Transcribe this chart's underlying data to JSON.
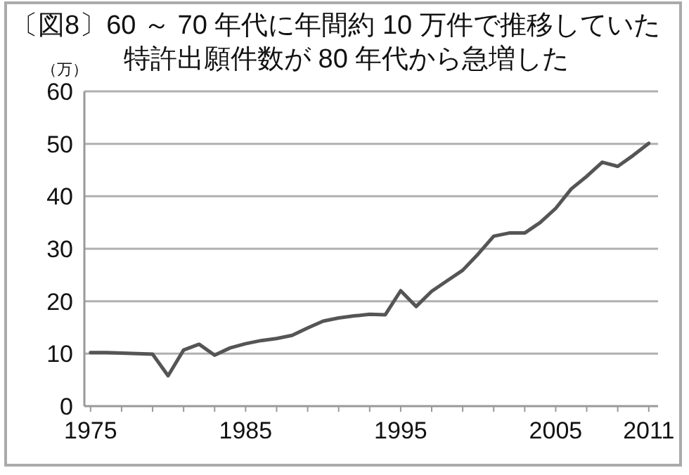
{
  "chart_data": {
    "type": "line",
    "title": "〔図8〕60 ～ 70 年代に年間約 10 万件で推移していた特許出願件数が 80 年代から急増した",
    "ylabel": "（万）",
    "x": [
      1975,
      1976,
      1977,
      1978,
      1979,
      1980,
      1981,
      1982,
      1983,
      1984,
      1985,
      1986,
      1987,
      1988,
      1989,
      1990,
      1991,
      1992,
      1993,
      1994,
      1995,
      1996,
      1997,
      1998,
      1999,
      2000,
      2001,
      2002,
      2003,
      2004,
      2005,
      2006,
      2007,
      2008,
      2009,
      2010,
      2011
    ],
    "series": [
      {
        "color": "#555555",
        "values": [
          10.2,
          10.2,
          10.1,
          10.0,
          9.9,
          5.8,
          10.7,
          11.8,
          9.7,
          11.1,
          11.9,
          12.5,
          12.9,
          13.5,
          14.9,
          16.2,
          16.8,
          17.2,
          17.5,
          17.4,
          22.0,
          19.0,
          21.9,
          23.9,
          25.9,
          29.0,
          32.4,
          33.0,
          33.0,
          35.0,
          37.7,
          41.4,
          43.8,
          46.5,
          45.7,
          47.8,
          50.1
        ]
      }
    ],
    "xlim": [
      1974.6,
      2011.6
    ],
    "ylim": [
      0,
      60
    ],
    "xticks": [
      1975,
      {
        "value": 1977,
        "label": null
      },
      {
        "value": 1979,
        "label": null
      },
      {
        "value": 1981,
        "label": null
      },
      {
        "value": 1983,
        "label": null
      },
      1985,
      {
        "value": 1987,
        "label": null
      },
      {
        "value": 1989,
        "label": null
      },
      {
        "value": 1991,
        "label": null
      },
      {
        "value": 1993,
        "label": null
      },
      1995,
      {
        "value": 1997,
        "label": null
      },
      {
        "value": 1999,
        "label": null
      },
      {
        "value": 2001,
        "label": null
      },
      {
        "value": 2003,
        "label": null
      },
      2005,
      {
        "value": 2007,
        "label": null
      },
      {
        "value": 2009,
        "label": null
      },
      2011
    ],
    "yticks": [
      0,
      10,
      20,
      30,
      40,
      50,
      60
    ],
    "grid": "y",
    "marker": "none",
    "line_style": "solid"
  }
}
